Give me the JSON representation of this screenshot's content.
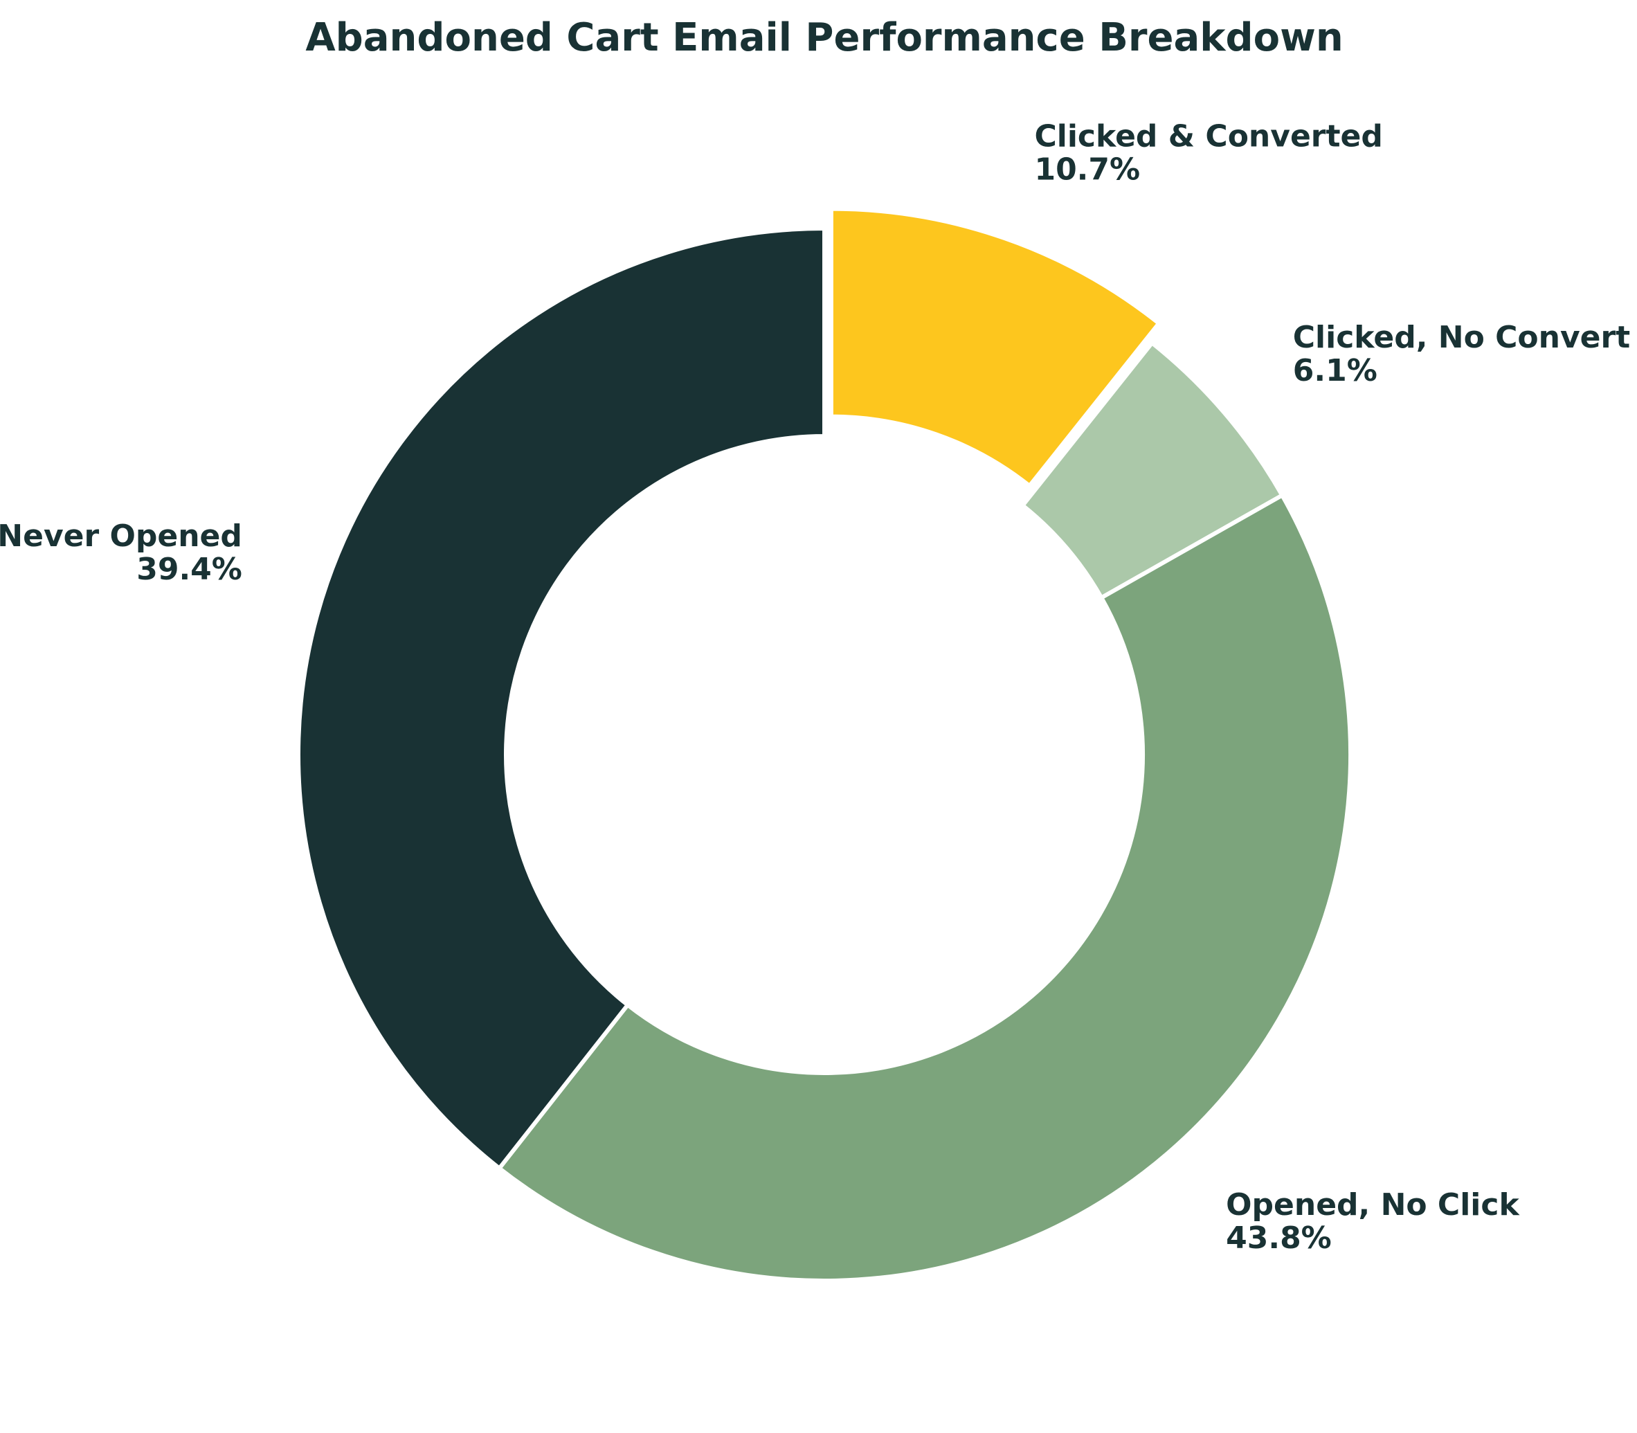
{
  "chart_data": {
    "type": "pie",
    "title": "Abandoned Cart Email Performance Breakdown",
    "donut": true,
    "start_angle_deg": 90,
    "direction": "clockwise",
    "slices": [
      {
        "label": "Clicked & Converted",
        "value": 10.7,
        "pct_label": "10.7%",
        "color": "#FDC61E",
        "exploded": true
      },
      {
        "label": "Clicked, No Convert",
        "value": 6.1,
        "pct_label": "6.1%",
        "color": "#ABC8A9",
        "exploded": false
      },
      {
        "label": "Opened, No Click",
        "value": 43.8,
        "pct_label": "43.8%",
        "color": "#7CA47C",
        "exploded": false
      },
      {
        "label": "Never Opened",
        "value": 39.4,
        "pct_label": "39.4%",
        "color": "#193234",
        "exploded": false
      }
    ],
    "colors": {
      "text": "#193234",
      "slice_edge": "#ffffff",
      "background": "#ffffff"
    }
  }
}
